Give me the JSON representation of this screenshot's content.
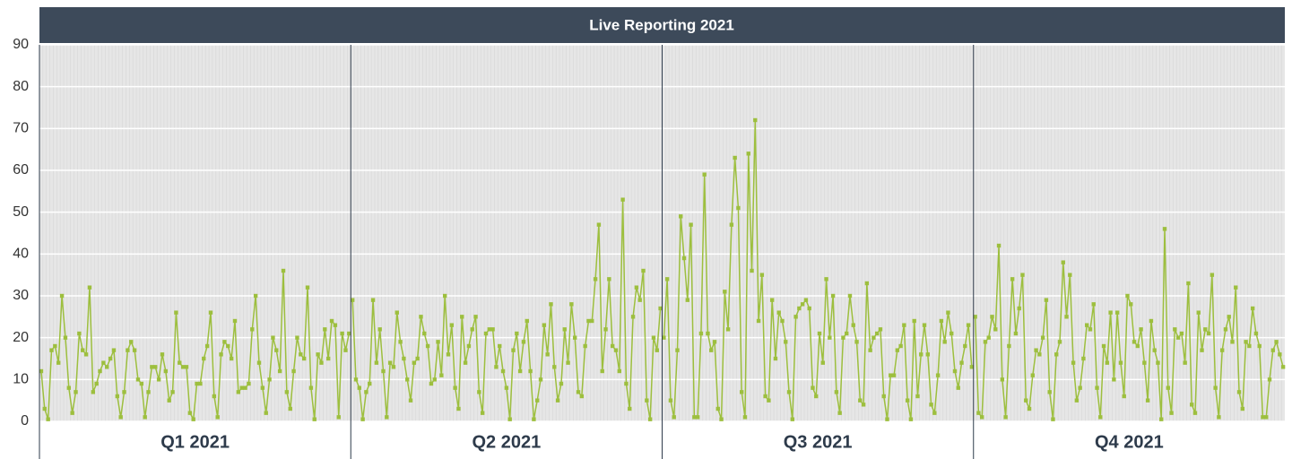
{
  "chart_data": {
    "type": "line",
    "title": "Live Reporting 2021",
    "color": "#9dbf3e",
    "grid": true,
    "ylim": [
      0,
      90
    ],
    "yticks": [
      0,
      10,
      20,
      30,
      40,
      50,
      60,
      70,
      80,
      90
    ],
    "panels": [
      {
        "label": "Q1 2021",
        "values": [
          12,
          3,
          0.5,
          17,
          18,
          14,
          30,
          20,
          8,
          2,
          7,
          21,
          17,
          16,
          32,
          7,
          9,
          12,
          14,
          13,
          15,
          17,
          6,
          1,
          7,
          17,
          19,
          17,
          10,
          9,
          1,
          7,
          13,
          13,
          10,
          16,
          12,
          5,
          7,
          26,
          14,
          13,
          13,
          2,
          0.5,
          9,
          9,
          15,
          18,
          26,
          6,
          1,
          16,
          19,
          18,
          15,
          24,
          7,
          8,
          8,
          9,
          22,
          30,
          14,
          8,
          2,
          10,
          20,
          17,
          12,
          36,
          7,
          3,
          12,
          20,
          16,
          15,
          32,
          8,
          0.5,
          16,
          14,
          22,
          15,
          24,
          23,
          1,
          21,
          17,
          21
        ]
      },
      {
        "label": "Q2 2021",
        "values": [
          29,
          10,
          8,
          0.5,
          7,
          9,
          29,
          14,
          22,
          12,
          1,
          14,
          13,
          26,
          19,
          15,
          10,
          5,
          14,
          15,
          25,
          21,
          18,
          9,
          10,
          19,
          11,
          30,
          16,
          23,
          8,
          3,
          25,
          14,
          18,
          22,
          25,
          7,
          2,
          21,
          22,
          22,
          13,
          18,
          12,
          8,
          0.5,
          17,
          21,
          12,
          19,
          24,
          12,
          0.5,
          5,
          10,
          23,
          16,
          28,
          13,
          5,
          9,
          22,
          14,
          28,
          20,
          7,
          6,
          18,
          24,
          24,
          34,
          47,
          12,
          22,
          34,
          18,
          17,
          12,
          53,
          9,
          3,
          25,
          32,
          29,
          36,
          5,
          0.5,
          20,
          17,
          27
        ]
      },
      {
        "label": "Q3 2021",
        "values": [
          20,
          34,
          5,
          1,
          17,
          49,
          39,
          29,
          47,
          1,
          1,
          21,
          59,
          21,
          17,
          19,
          3,
          0.5,
          31,
          22,
          47,
          63,
          51,
          7,
          1,
          64,
          36,
          72,
          24,
          35,
          6,
          5,
          29,
          15,
          26,
          24,
          19,
          7,
          0.5,
          25,
          27,
          28,
          29,
          27,
          8,
          6,
          21,
          14,
          34,
          20,
          30,
          7,
          2,
          20,
          21,
          30,
          23,
          19,
          5,
          4,
          33,
          17,
          20,
          21,
          22,
          6,
          0.5,
          11,
          11,
          17,
          18,
          23,
          5,
          0.5,
          24,
          6,
          16,
          23,
          16,
          4,
          2,
          11,
          24,
          19,
          26,
          21,
          12,
          8,
          14,
          18,
          23,
          13
        ]
      },
      {
        "label": "Q4 2021",
        "values": [
          25,
          2,
          1,
          19,
          20,
          25,
          22,
          42,
          10,
          1,
          18,
          34,
          21,
          27,
          35,
          5,
          3,
          11,
          17,
          16,
          20,
          29,
          7,
          0.5,
          16,
          19,
          38,
          25,
          35,
          14,
          5,
          8,
          15,
          23,
          22,
          28,
          8,
          1,
          18,
          14,
          26,
          10,
          26,
          14,
          6,
          30,
          28,
          19,
          18,
          22,
          14,
          5,
          24,
          17,
          14,
          0.5,
          46,
          8,
          2,
          22,
          20,
          21,
          14,
          33,
          4,
          2,
          26,
          17,
          22,
          21,
          35,
          8,
          1,
          17,
          22,
          25,
          19,
          32,
          7,
          3,
          19,
          18,
          27,
          21,
          18,
          1,
          1,
          10,
          17,
          19,
          16,
          13
        ]
      }
    ]
  }
}
